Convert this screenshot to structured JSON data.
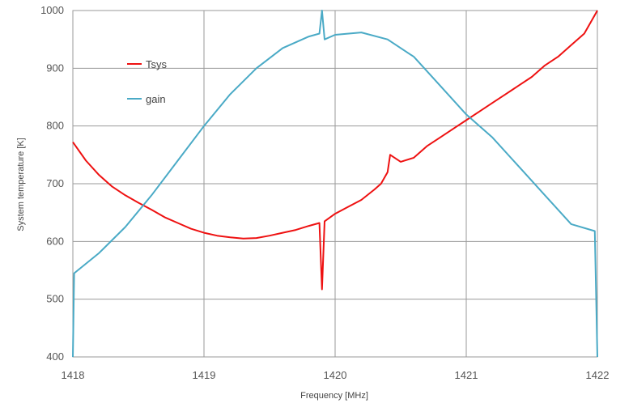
{
  "chart_data": {
    "type": "line",
    "title": "",
    "xlabel": "Frequency [MHz]",
    "ylabel": "System temperature [K]",
    "xlim": [
      1418,
      1422
    ],
    "ylim": [
      400,
      1000
    ],
    "xticks": [
      "1418",
      "1419",
      "1420",
      "1421",
      "1422"
    ],
    "yticks": [
      "400",
      "500",
      "600",
      "700",
      "800",
      "900",
      "1000"
    ],
    "grid": true,
    "legend_position": "top-left",
    "colors": {
      "Tsys": "#ee1111",
      "gain": "#4aaac6"
    },
    "series": [
      {
        "name": "Tsys",
        "x": [
          1418.0,
          1418.1,
          1418.2,
          1418.3,
          1418.4,
          1418.5,
          1418.6,
          1418.7,
          1418.8,
          1418.9,
          1419.0,
          1419.1,
          1419.2,
          1419.3,
          1419.4,
          1419.5,
          1419.6,
          1419.7,
          1419.8,
          1419.88,
          1419.9,
          1419.92,
          1420.0,
          1420.1,
          1420.2,
          1420.3,
          1420.35,
          1420.4,
          1420.42,
          1420.5,
          1420.6,
          1420.7,
          1420.8,
          1420.9,
          1421.0,
          1421.1,
          1421.2,
          1421.3,
          1421.4,
          1421.5,
          1421.6,
          1421.7,
          1421.8,
          1421.9,
          1422.0
        ],
        "values": [
          772,
          740,
          715,
          695,
          680,
          667,
          655,
          642,
          632,
          622,
          615,
          610,
          607,
          605,
          606,
          610,
          615,
          620,
          627,
          632,
          517,
          635,
          648,
          660,
          672,
          690,
          700,
          720,
          750,
          738,
          745,
          765,
          780,
          795,
          810,
          825,
          840,
          855,
          870,
          885,
          905,
          920,
          940,
          960,
          1000
        ]
      },
      {
        "name": "gain",
        "x": [
          1418.0,
          1418.01,
          1418.2,
          1418.4,
          1418.6,
          1418.8,
          1419.0,
          1419.2,
          1419.4,
          1419.6,
          1419.8,
          1419.88,
          1419.9,
          1419.92,
          1420.0,
          1420.2,
          1420.4,
          1420.6,
          1420.8,
          1421.0,
          1421.2,
          1421.4,
          1421.6,
          1421.8,
          1421.98,
          1422.0
        ],
        "values": [
          400,
          545,
          580,
          625,
          680,
          740,
          800,
          855,
          900,
          935,
          955,
          960,
          1000,
          950,
          958,
          962,
          950,
          920,
          870,
          820,
          780,
          730,
          680,
          630,
          618,
          400
        ]
      }
    ]
  }
}
